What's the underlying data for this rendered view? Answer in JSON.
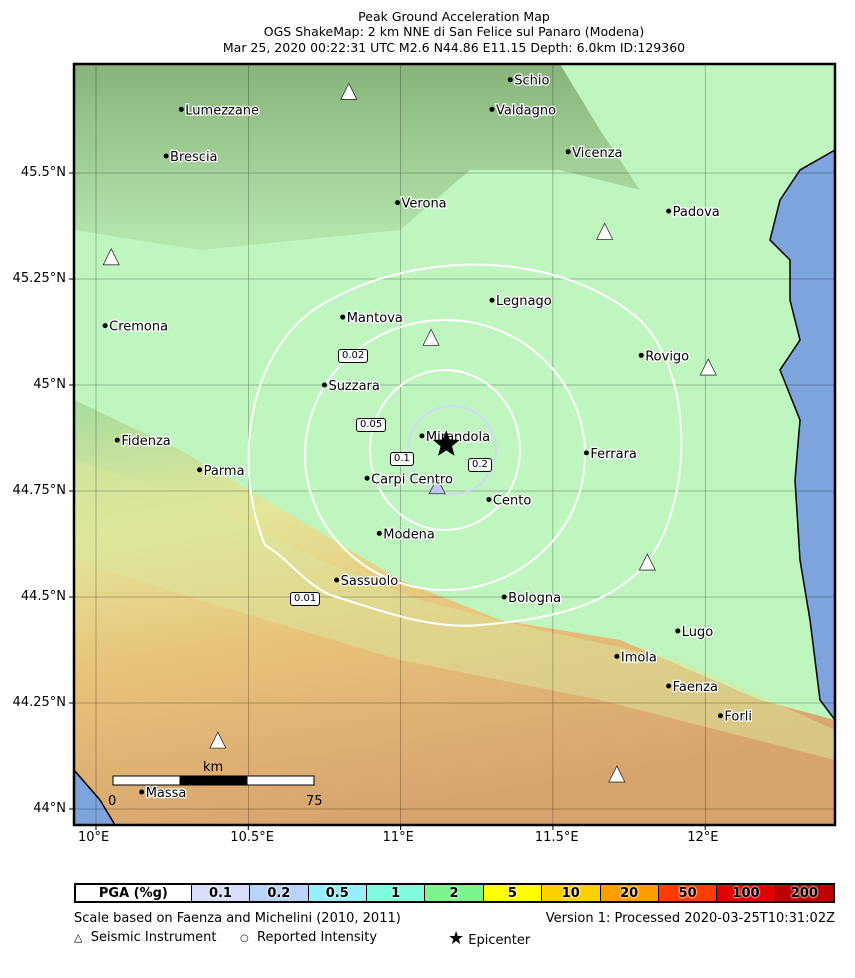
{
  "title": {
    "line1": "Peak Ground Acceleration Map",
    "line2": "OGS ShakeMap: 2 km NNE di San Felice sul Panaro (Modena)",
    "line3": "Mar 25, 2020 00:22:31 UTC M2.6 N44.86 E11.15 Depth: 6.0km ID:129360"
  },
  "axes": {
    "lon_ticks": [
      {
        "value": 10,
        "label": "10°E"
      },
      {
        "value": 10.5,
        "label": "10.5°E"
      },
      {
        "value": 11,
        "label": "11°E"
      },
      {
        "value": 11.5,
        "label": "11.5°E"
      },
      {
        "value": 12,
        "label": "12°E"
      }
    ],
    "lat_ticks": [
      {
        "value": 45.5,
        "label": "45.5°N"
      },
      {
        "value": 45.25,
        "label": "45.25°N"
      },
      {
        "value": 45,
        "label": "45°N"
      },
      {
        "value": 44.75,
        "label": "44.75°N"
      },
      {
        "value": 44.5,
        "label": "44.5°N"
      },
      {
        "value": 44.25,
        "label": "44.25°N"
      },
      {
        "value": 44,
        "label": "44°N"
      }
    ]
  },
  "cities": [
    {
      "name": "Schio",
      "lon": 11.36,
      "lat": 45.72
    },
    {
      "name": "Valdagno",
      "lon": 11.3,
      "lat": 45.65
    },
    {
      "name": "Lumezzane",
      "lon": 10.28,
      "lat": 45.65
    },
    {
      "name": "Brescia",
      "lon": 10.23,
      "lat": 45.54
    },
    {
      "name": "Vicenza",
      "lon": 11.55,
      "lat": 45.55
    },
    {
      "name": "Verona",
      "lon": 10.99,
      "lat": 45.43
    },
    {
      "name": "Padova",
      "lon": 11.88,
      "lat": 45.41
    },
    {
      "name": "Legnago",
      "lon": 11.3,
      "lat": 45.2
    },
    {
      "name": "Mantova",
      "lon": 10.81,
      "lat": 45.16
    },
    {
      "name": "Cremona",
      "lon": 10.03,
      "lat": 45.14
    },
    {
      "name": "Rovigo",
      "lon": 11.79,
      "lat": 45.07
    },
    {
      "name": "Suzzara",
      "lon": 10.75,
      "lat": 45.0
    },
    {
      "name": "Mirandola",
      "lon": 11.07,
      "lat": 44.88
    },
    {
      "name": "Fidenza",
      "lon": 10.07,
      "lat": 44.87
    },
    {
      "name": "Ferrara",
      "lon": 11.61,
      "lat": 44.84
    },
    {
      "name": "Parma",
      "lon": 10.34,
      "lat": 44.8
    },
    {
      "name": "Carpi Centro",
      "lon": 10.89,
      "lat": 44.78
    },
    {
      "name": "Cento",
      "lon": 11.29,
      "lat": 44.73
    },
    {
      "name": "Modena",
      "lon": 10.93,
      "lat": 44.65
    },
    {
      "name": "Sassuolo",
      "lon": 10.79,
      "lat": 44.54
    },
    {
      "name": "Bologna",
      "lon": 11.34,
      "lat": 44.5
    },
    {
      "name": "Lugo",
      "lon": 11.91,
      "lat": 44.42
    },
    {
      "name": "Imola",
      "lon": 11.71,
      "lat": 44.36
    },
    {
      "name": "Faenza",
      "lon": 11.88,
      "lat": 44.29
    },
    {
      "name": "Forli",
      "lon": 12.05,
      "lat": 44.22
    },
    {
      "name": "Massa",
      "lon": 10.15,
      "lat": 44.04
    }
  ],
  "stations": [
    {
      "lon": 10.83,
      "lat": 45.69,
      "color": "#ffffff"
    },
    {
      "lon": 10.05,
      "lat": 45.3,
      "color": "#ffffff"
    },
    {
      "lon": 11.67,
      "lat": 45.36,
      "color": "#ffffff"
    },
    {
      "lon": 11.1,
      "lat": 45.11,
      "color": "#ffffff"
    },
    {
      "lon": 12.01,
      "lat": 45.04,
      "color": "#ffffff"
    },
    {
      "lon": 11.12,
      "lat": 44.76,
      "color": "#bfc8f5"
    },
    {
      "lon": 11.81,
      "lat": 44.58,
      "color": "#ffffff"
    },
    {
      "lon": 10.4,
      "lat": 44.16,
      "color": "#ffffff"
    },
    {
      "lon": 11.71,
      "lat": 44.08,
      "color": "#ffffff"
    }
  ],
  "epicenter": {
    "lon": 11.15,
    "lat": 44.86
  },
  "contour_labels": [
    "0.01",
    "0.02",
    "0.05",
    "0.1",
    "0.2"
  ],
  "scalebar": {
    "unit": "km",
    "min": "0",
    "max": "75"
  },
  "legend": {
    "title": "PGA (%g)",
    "bins": [
      {
        "label": "0.1",
        "color": "#d9defc"
      },
      {
        "label": "0.2",
        "color": "#b9d4fa"
      },
      {
        "label": "0.5",
        "color": "#97eefc"
      },
      {
        "label": "1",
        "color": "#80fbe0"
      },
      {
        "label": "2",
        "color": "#7ef58c"
      },
      {
        "label": "5",
        "color": "#ffff00"
      },
      {
        "label": "10",
        "color": "#ffd000"
      },
      {
        "label": "20",
        "color": "#ff9d00"
      },
      {
        "label": "50",
        "color": "#ff3c00"
      },
      {
        "label": "100",
        "color": "#e00000"
      },
      {
        "label": "200",
        "color": "#bd0000"
      }
    ]
  },
  "footer": {
    "scale_note": "Scale based on Faenza and Michelini (2010, 2011)",
    "version": "Version 1: Processed 2020-03-25T10:31:02Z",
    "key_instrument": "Seismic Instrument",
    "key_intensity": "Reported Intensity",
    "key_epicenter": "Epicenter"
  },
  "colors": {
    "sea": "#7da4dc",
    "plain": "#bff6bf",
    "contour": "#ffffff"
  }
}
